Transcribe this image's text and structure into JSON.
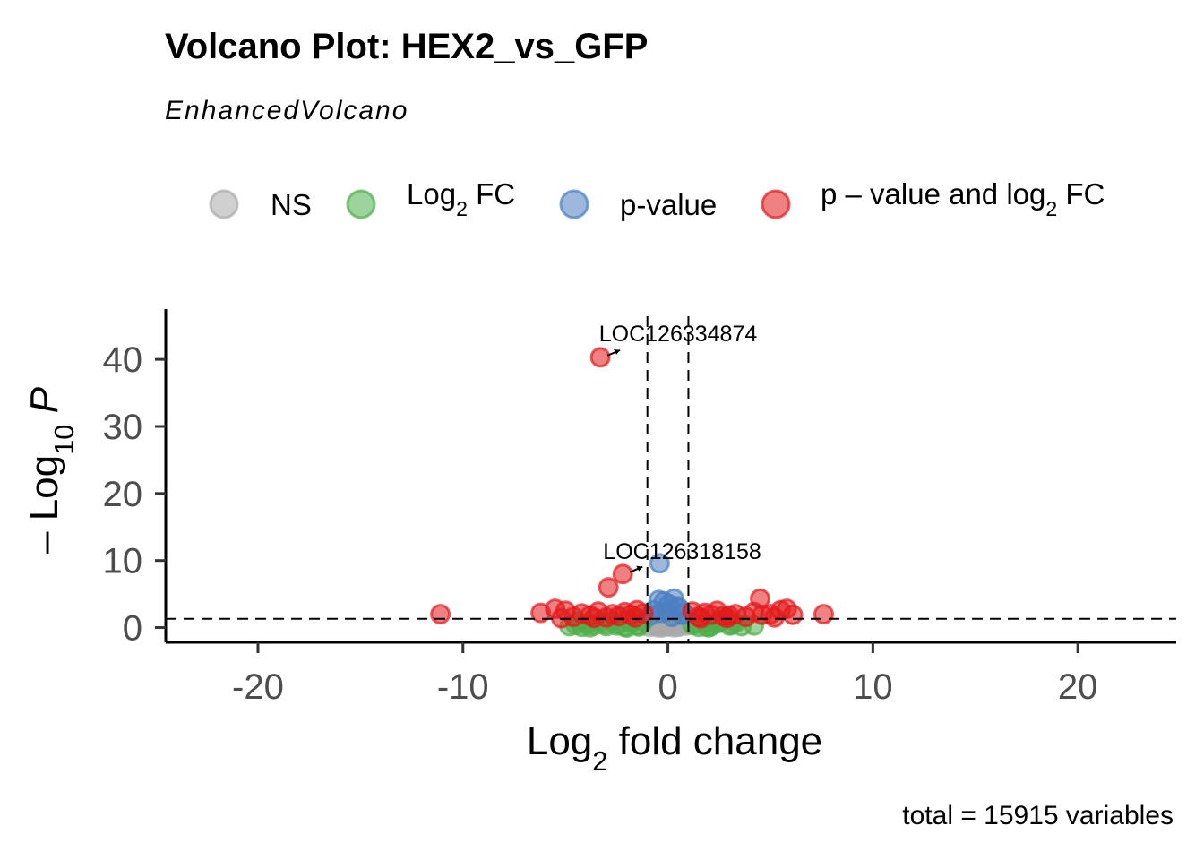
{
  "chart_data": {
    "type": "scatter",
    "title": "Volcano Plot: HEX2_vs_GFP",
    "subtitle": "EnhancedVolcano",
    "xlabel": "Log2 fold change",
    "ylabel": "-Log10 P",
    "caption": "total = 15915 variables",
    "xlim": [
      -24.5,
      24.8
    ],
    "ylim": [
      -2.2,
      47.5
    ],
    "x_ticks": [
      -20,
      -10,
      0,
      10,
      20
    ],
    "x_tick_labels": [
      "-20",
      "-10",
      "0",
      "10",
      "20"
    ],
    "y_ticks": [
      0,
      10,
      20,
      30,
      40
    ],
    "y_tick_labels": [
      "0",
      "10",
      "20",
      "30",
      "40"
    ],
    "fc_cutoff": 1,
    "p_cutoff_neglog10": 1.3,
    "legend": {
      "position": "top",
      "items": [
        {
          "key": "ns",
          "label": "NS",
          "color": "#a9a9a9"
        },
        {
          "key": "fc",
          "label": "Log2 FC",
          "color": "#4daf4a"
        },
        {
          "key": "p",
          "label": "p-value",
          "color": "#4a7fc1"
        },
        {
          "key": "both",
          "label": "p – value and log2 FC",
          "color": "#e41a1c"
        }
      ]
    },
    "series": [
      {
        "name": "NS",
        "color": "#a9a9a9",
        "x": [
          -0.9,
          -0.7,
          -0.5,
          -0.3,
          -0.1,
          0.1,
          0.3,
          0.5,
          0.7,
          0.9,
          -0.8,
          -0.6,
          -0.4,
          -0.2,
          0.0,
          0.2,
          0.4,
          0.6,
          0.8,
          -0.5,
          0.0,
          0.5,
          -0.3,
          0.3
        ],
        "y": [
          0.1,
          0.3,
          0.5,
          0.2,
          0.7,
          0.4,
          0.6,
          0.2,
          0.8,
          0.3,
          0.9,
          1.0,
          0.6,
          1.1,
          0.2,
          0.9,
          1.0,
          0.5,
          0.4,
          0.05,
          0.15,
          0.1,
          0.0,
          0.05
        ]
      },
      {
        "name": "Log2 FC",
        "color": "#4daf4a",
        "x": [
          -4.8,
          -4.5,
          -4.2,
          -3.9,
          -3.6,
          -3.3,
          -3.0,
          -2.7,
          -2.4,
          -2.1,
          -1.8,
          -1.5,
          -1.2,
          1.2,
          1.5,
          1.8,
          2.1,
          2.4,
          2.7,
          3.0,
          3.3,
          3.6,
          -4.4,
          -3.8,
          -3.1,
          -2.5,
          -1.9,
          -1.4,
          1.4,
          1.9,
          2.5,
          3.1,
          4.2,
          -2.0,
          2.0
        ],
        "y": [
          0.2,
          0.4,
          0.1,
          0.6,
          0.3,
          0.8,
          0.2,
          1.0,
          0.5,
          0.1,
          0.7,
          0.3,
          0.9,
          0.4,
          0.1,
          0.8,
          0.2,
          0.6,
          1.1,
          0.3,
          0.7,
          0.2,
          0.9,
          0.05,
          0.5,
          0.3,
          1.0,
          0.15,
          0.6,
          0.1,
          0.9,
          0.4,
          0.3,
          0.0,
          0.05
        ]
      },
      {
        "name": "p-value",
        "color": "#4a7fc1",
        "x": [
          -0.45,
          -0.2,
          0.05,
          0.3,
          0.55,
          -0.7,
          -0.05,
          0.45,
          0.8,
          -0.85,
          0.2,
          -0.35,
          0.65,
          -0.4
        ],
        "y": [
          4.1,
          3.9,
          3.5,
          4.3,
          2.9,
          2.6,
          2.4,
          3.2,
          2.1,
          1.8,
          1.6,
          2.2,
          1.9,
          9.6
        ],
        "y_override_last_index": 13
      },
      {
        "name": "p – value and log2 FC",
        "color": "#e41a1c",
        "x": [
          -11.1,
          -6.2,
          -5.5,
          -5.0,
          -4.6,
          -4.2,
          -3.8,
          -3.4,
          -3.0,
          -2.7,
          -2.4,
          -2.1,
          -1.8,
          -1.5,
          -1.2,
          1.2,
          1.5,
          1.8,
          2.1,
          2.4,
          2.7,
          3.0,
          3.3,
          3.8,
          4.2,
          4.6,
          5.0,
          5.5,
          5.8,
          6.1,
          7.6,
          -3.3,
          -2.9,
          -2.2,
          4.5,
          -5.2,
          -3.6,
          -1.6,
          1.6,
          2.9,
          5.2
        ],
        "y": [
          2.0,
          2.2,
          2.8,
          2.5,
          1.6,
          2.1,
          1.8,
          2.4,
          1.5,
          2.0,
          1.7,
          2.3,
          1.9,
          2.6,
          2.1,
          2.4,
          1.6,
          2.2,
          1.9,
          2.5,
          1.7,
          1.8,
          2.0,
          1.6,
          2.3,
          1.9,
          2.0,
          2.6,
          2.8,
          1.9,
          2.0,
          40.3,
          6.0,
          8.0,
          4.3,
          1.4,
          1.45,
          1.5,
          1.4,
          1.45,
          1.5
        ]
      }
    ],
    "labels": [
      {
        "text": "LOC126334874",
        "x": 0.5,
        "y": 42.7,
        "point_x": -3.3,
        "point_y": 40.3
      },
      {
        "text": "LOC126318158",
        "x": 0.7,
        "y": 10.2,
        "point_x": -2.2,
        "point_y": 8.0
      }
    ]
  }
}
